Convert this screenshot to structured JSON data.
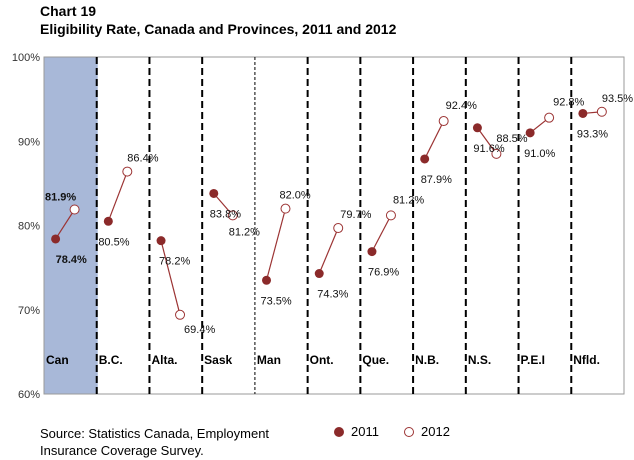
{
  "chart_data": {
    "type": "line",
    "title": "Chart 19",
    "subtitle": "Eligibility Rate, Canada and Provinces, 2011 and 2012",
    "ylim": [
      60,
      100
    ],
    "yticks": [
      "60%",
      "70%",
      "80%",
      "90%",
      "100%"
    ],
    "categories": [
      "Can",
      "B.C.",
      "Alta.",
      "Sask",
      "Man",
      "Ont.",
      "Que.",
      "N.B.",
      "N.S.",
      "P.E.I",
      "Nfld."
    ],
    "series": [
      {
        "name": "2011",
        "values": [
          78.4,
          80.5,
          78.2,
          83.8,
          73.5,
          74.3,
          76.9,
          87.9,
          91.6,
          91.0,
          93.3
        ],
        "labels": [
          "78.4%",
          "80.5%",
          "78.2%",
          "83.8%",
          "73.5%",
          "74.3%",
          "76.9%",
          "87.9%",
          "91.6%",
          "91.0%",
          "93.3%"
        ]
      },
      {
        "name": "2012",
        "values": [
          81.9,
          86.4,
          69.4,
          81.2,
          82.0,
          79.7,
          81.2,
          92.4,
          88.5,
          92.8,
          93.5
        ],
        "labels": [
          "81.9%",
          "86.4%",
          "69.4%",
          "81.2%",
          "82.0%",
          "79.7%",
          "81.2%",
          "92.4%",
          "88.5%",
          "92.8%",
          "93.5%"
        ]
      }
    ],
    "highlight_category": "Can",
    "colors": {
      "line": "#9c3434",
      "marker_2011": "#8b2a2a",
      "marker_2012": "#9c3434",
      "highlight": "#a8b8d8",
      "divider": "#000000"
    }
  },
  "source": "Source: Statistics Canada, Employment Insurance Coverage Survey."
}
